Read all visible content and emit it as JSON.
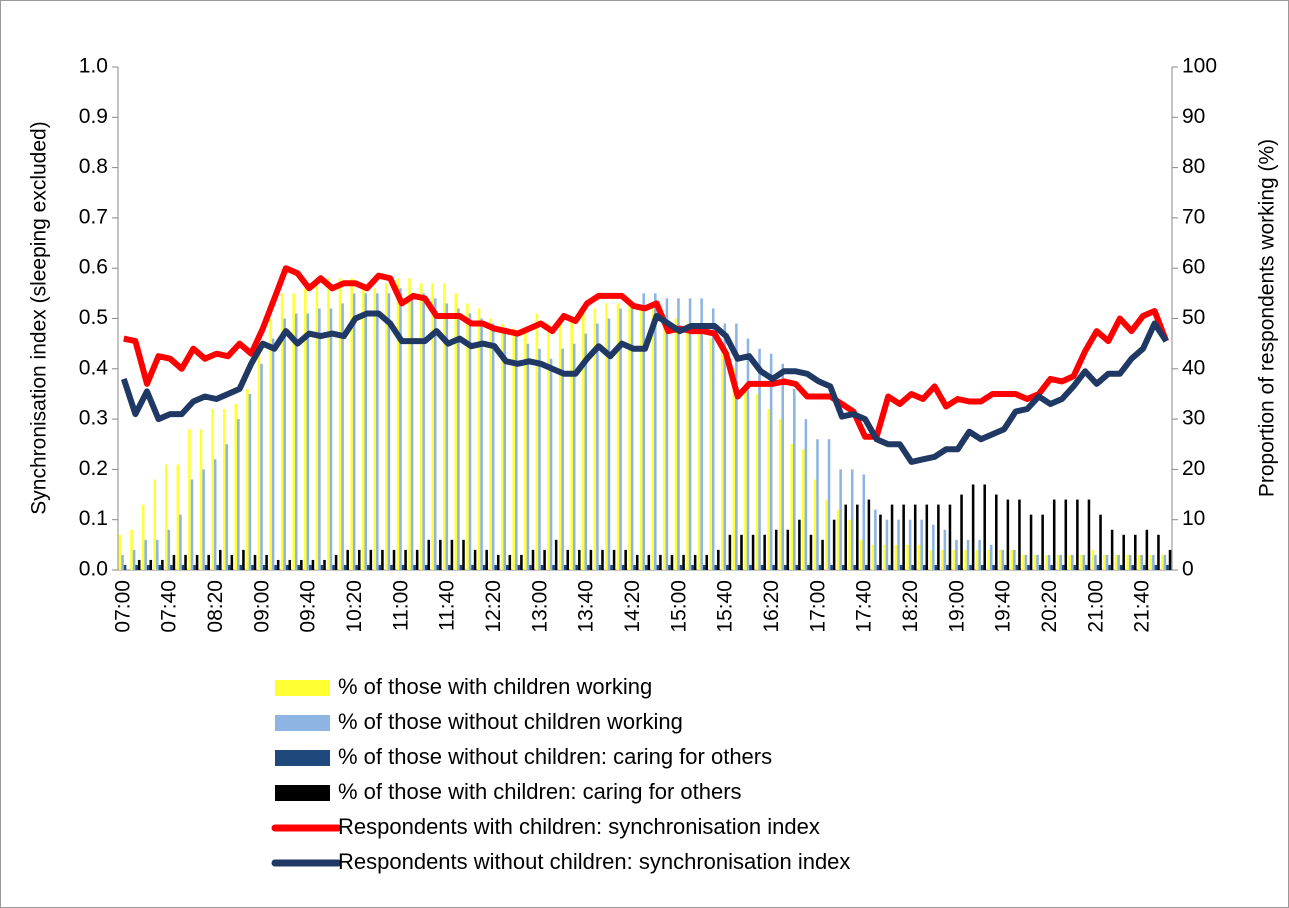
{
  "chart_data": {
    "type": "combo",
    "categories": [
      "07:00",
      null,
      null,
      null,
      "07:40",
      null,
      null,
      null,
      "08:20",
      null,
      null,
      null,
      "09:00",
      null,
      null,
      null,
      "09:40",
      null,
      null,
      null,
      "10:20",
      null,
      null,
      null,
      "11:00",
      null,
      null,
      null,
      "11:40",
      null,
      null,
      null,
      "12:20",
      null,
      null,
      null,
      "13:00",
      null,
      null,
      null,
      "13:40",
      null,
      null,
      null,
      "14:20",
      null,
      null,
      null,
      "15:00",
      null,
      null,
      null,
      "15:40",
      null,
      null,
      null,
      "16:20",
      null,
      null,
      null,
      "17:00",
      null,
      null,
      null,
      "17:40",
      null,
      null,
      null,
      "18:20",
      null,
      null,
      null,
      "19:00",
      null,
      null,
      null,
      "19:40",
      null,
      null,
      null,
      "20:20",
      null,
      null,
      null,
      "21:00",
      null,
      null,
      null,
      "21:40",
      null,
      null
    ],
    "y_label": "Synchronisation index (sleeping excluded)",
    "y2_label": "Proportion of respondents working (%)",
    "ylim": [
      0,
      1
    ],
    "yticks": [
      {
        "value": 0,
        "label": "0.0"
      },
      0.1,
      0.2,
      0.3,
      0.4,
      0.5,
      0.6,
      0.7,
      0.8,
      0.9,
      {
        "value": 1,
        "label": "1.0"
      }
    ],
    "y2lim": [
      0,
      100
    ],
    "y2ticks": [
      0,
      10,
      20,
      30,
      40,
      50,
      60,
      70,
      80,
      90,
      100
    ],
    "grid": false,
    "series": [
      {
        "name": "% of those with children working",
        "type": "bar",
        "axis": "y2",
        "color": "#ffff33",
        "values": [
          7,
          8,
          13,
          18,
          21,
          21,
          28,
          28,
          32,
          32,
          33,
          36,
          43,
          50,
          55,
          55,
          56,
          57,
          58,
          58,
          58,
          57,
          56,
          57,
          58,
          58,
          57,
          57,
          57,
          55,
          53,
          52,
          50,
          49,
          48,
          47,
          51,
          49,
          50,
          50,
          51,
          52,
          53,
          53,
          53,
          52,
          52,
          50,
          50,
          49,
          48,
          46,
          44,
          40,
          37,
          35,
          32,
          30,
          25,
          24,
          18,
          14,
          12,
          10,
          6,
          5,
          5,
          5,
          5,
          5,
          4,
          4,
          4,
          4,
          4,
          4,
          4,
          4,
          3,
          3,
          3,
          3,
          3,
          3,
          4,
          3,
          3,
          3,
          3,
          3,
          3
        ]
      },
      {
        "name": "% of those without children working",
        "type": "bar",
        "axis": "y2",
        "color": "#8db4e2",
        "values": [
          3,
          4,
          6,
          6,
          8,
          11,
          18,
          20,
          22,
          25,
          30,
          35,
          41,
          46,
          50,
          51,
          51,
          52,
          52,
          53,
          55,
          55,
          55,
          55,
          56,
          55,
          55,
          54,
          53,
          52,
          51,
          50,
          49,
          48,
          47,
          45,
          44,
          42,
          44,
          45,
          47,
          49,
          50,
          52,
          53,
          55,
          55,
          54,
          54,
          54,
          54,
          52,
          49,
          49,
          46,
          44,
          43,
          41,
          36,
          30,
          26,
          26,
          20,
          20,
          19,
          12,
          10,
          10,
          10,
          10,
          9,
          8,
          6,
          6,
          6,
          5,
          4,
          4,
          3,
          3,
          3,
          3,
          3,
          3,
          3,
          3,
          3,
          3,
          3,
          3,
          3
        ]
      },
      {
        "name": "% of those without children: caring for others",
        "type": "bar",
        "axis": "y2",
        "color": "#1f497d",
        "values": [
          1,
          1,
          1,
          1,
          1,
          1,
          1,
          1,
          1,
          1,
          1,
          1,
          1,
          1,
          1,
          1,
          1,
          1,
          1,
          1,
          1,
          1,
          1,
          1,
          1,
          1,
          1,
          1,
          1,
          1,
          1,
          1,
          1,
          1,
          1,
          1,
          1,
          1,
          1,
          1,
          1,
          1,
          1,
          1,
          1,
          1,
          1,
          1,
          1,
          1,
          1,
          1,
          1,
          1,
          1,
          1,
          1,
          1,
          1,
          1,
          1,
          1,
          1,
          1,
          1,
          1,
          1,
          1,
          1,
          1,
          1,
          1,
          1,
          1,
          1,
          1,
          1,
          1,
          1,
          1,
          1,
          1,
          1,
          1,
          1,
          1,
          1,
          1,
          1,
          1,
          1
        ]
      },
      {
        "name": "% of those with children: caring for others",
        "type": "bar",
        "axis": "y2",
        "color": "#000000",
        "values": [
          0,
          2,
          2,
          2,
          3,
          3,
          3,
          3,
          4,
          3,
          4,
          3,
          3,
          2,
          2,
          2,
          2,
          2,
          3,
          4,
          4,
          4,
          4,
          4,
          4,
          4,
          6,
          6,
          6,
          6,
          4,
          4,
          3,
          3,
          3,
          4,
          4,
          6,
          4,
          4,
          4,
          4,
          4,
          4,
          3,
          3,
          3,
          3,
          3,
          3,
          3,
          4,
          7,
          7,
          7,
          7,
          8,
          8,
          10,
          7,
          6,
          10,
          13,
          13,
          14,
          11,
          13,
          13,
          13,
          13,
          13,
          13,
          15,
          17,
          17,
          15,
          14,
          14,
          11,
          11,
          14,
          14,
          14,
          14,
          11,
          8,
          7,
          7,
          8,
          7,
          4
        ]
      },
      {
        "name": "Respondents with children: synchronisation index",
        "type": "line",
        "color": "#ff0000",
        "values": [
          0.46,
          0.455,
          0.37,
          0.425,
          0.42,
          0.4,
          0.44,
          0.42,
          0.43,
          0.425,
          0.45,
          0.43,
          0.48,
          0.54,
          0.6,
          0.59,
          0.56,
          0.58,
          0.56,
          0.57,
          0.57,
          0.56,
          0.585,
          0.58,
          0.53,
          0.545,
          0.54,
          0.505,
          0.505,
          0.505,
          0.49,
          0.49,
          0.48,
          0.475,
          0.47,
          0.48,
          0.49,
          0.475,
          0.505,
          0.495,
          0.53,
          0.545,
          0.545,
          0.545,
          0.525,
          0.52,
          0.53,
          0.475,
          0.48,
          0.475,
          0.475,
          0.47,
          0.43,
          0.345,
          0.37,
          0.37,
          0.37,
          0.375,
          0.37,
          0.345,
          0.345,
          0.345,
          0.33,
          0.315,
          0.265,
          0.265,
          0.345,
          0.33,
          0.35,
          0.34,
          0.365,
          0.325,
          0.34,
          0.335,
          0.335,
          0.35,
          0.35,
          0.35,
          0.34,
          0.35,
          0.38,
          0.375,
          0.385,
          0.435,
          0.475,
          0.455,
          0.5,
          0.475,
          0.505,
          0.515,
          0.455
        ]
      },
      {
        "name": "Respondents without children: synchronisation index",
        "type": "line",
        "color": "#1f3864",
        "values": [
          0.38,
          0.31,
          0.355,
          0.3,
          0.31,
          0.31,
          0.335,
          0.345,
          0.34,
          0.35,
          0.36,
          0.41,
          0.45,
          0.44,
          0.475,
          0.45,
          0.47,
          0.465,
          0.47,
          0.465,
          0.5,
          0.51,
          0.51,
          0.49,
          0.455,
          0.455,
          0.455,
          0.475,
          0.45,
          0.46,
          0.445,
          0.45,
          0.445,
          0.415,
          0.41,
          0.415,
          0.41,
          0.4,
          0.39,
          0.39,
          0.42,
          0.445,
          0.425,
          0.45,
          0.44,
          0.44,
          0.505,
          0.49,
          0.475,
          0.485,
          0.485,
          0.485,
          0.465,
          0.42,
          0.425,
          0.395,
          0.38,
          0.395,
          0.395,
          0.39,
          0.375,
          0.365,
          0.305,
          0.31,
          0.3,
          0.26,
          0.25,
          0.25,
          0.215,
          0.22,
          0.225,
          0.24,
          0.24,
          0.275,
          0.26,
          0.27,
          0.28,
          0.315,
          0.32,
          0.345,
          0.33,
          0.34,
          0.365,
          0.395,
          0.37,
          0.39,
          0.39,
          0.42,
          0.44,
          0.49,
          0.455
        ]
      }
    ]
  }
}
